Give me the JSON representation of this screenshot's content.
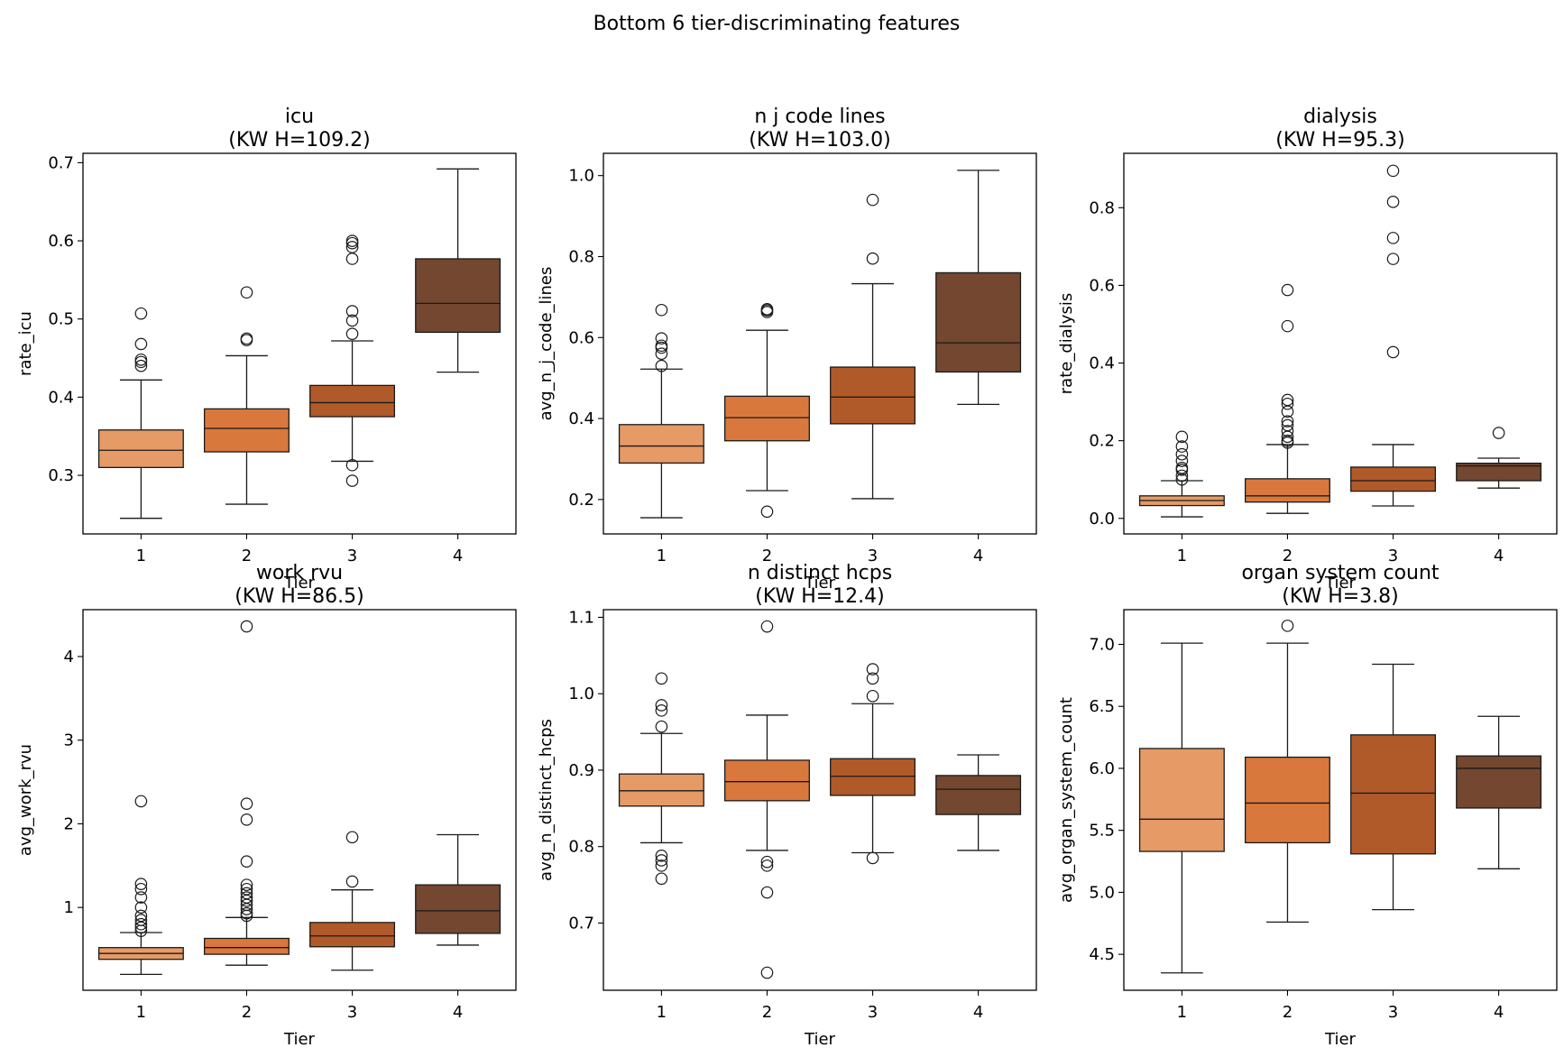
{
  "figure": {
    "suptitle": "Bottom 6 tier-discriminating features",
    "palette": [
      "#e69a66",
      "#d9783c",
      "#b05a2a",
      "#734730"
    ]
  },
  "chart_data": [
    {
      "type": "box",
      "title_line1": "icu",
      "title_line2": "(KW H=109.2)",
      "xlabel": "Tier",
      "ylabel": "rate_icu",
      "categories": [
        "1",
        "2",
        "3",
        "4"
      ],
      "ylim": [
        0.225,
        0.712
      ],
      "yticks": [
        0.3,
        0.4,
        0.5,
        0.6,
        0.7
      ],
      "ytick_labels": [
        "0.3",
        "0.4",
        "0.5",
        "0.6",
        "0.7"
      ],
      "boxes": [
        {
          "whislo": 0.245,
          "q1": 0.31,
          "med": 0.332,
          "q3": 0.358,
          "whishi": 0.422,
          "fliers": [
            0.44,
            0.445,
            0.448,
            0.468,
            0.507
          ]
        },
        {
          "whislo": 0.263,
          "q1": 0.33,
          "med": 0.36,
          "q3": 0.385,
          "whishi": 0.453,
          "fliers": [
            0.473,
            0.475,
            0.534
          ]
        },
        {
          "whislo": 0.318,
          "q1": 0.375,
          "med": 0.393,
          "q3": 0.415,
          "whishi": 0.472,
          "fliers": [
            0.293,
            0.313,
            0.481,
            0.498,
            0.51,
            0.577,
            0.592,
            0.597,
            0.6
          ]
        },
        {
          "whislo": 0.432,
          "q1": 0.483,
          "med": 0.52,
          "q3": 0.577,
          "whishi": 0.692,
          "fliers": []
        }
      ]
    },
    {
      "type": "box",
      "title_line1": "n j code lines",
      "title_line2": "(KW H=103.0)",
      "xlabel": "Tier",
      "ylabel": "avg_n_j_code_lines",
      "categories": [
        "1",
        "2",
        "3",
        "4"
      ],
      "ylim": [
        0.115,
        1.055
      ],
      "yticks": [
        0.2,
        0.4,
        0.6,
        0.8,
        1.0
      ],
      "ytick_labels": [
        "0.2",
        "0.4",
        "0.6",
        "0.8",
        "1.0"
      ],
      "boxes": [
        {
          "whislo": 0.155,
          "q1": 0.29,
          "med": 0.332,
          "q3": 0.385,
          "whishi": 0.522,
          "fliers": [
            0.53,
            0.56,
            0.575,
            0.58,
            0.598,
            0.668
          ]
        },
        {
          "whislo": 0.222,
          "q1": 0.345,
          "med": 0.402,
          "q3": 0.455,
          "whishi": 0.618,
          "fliers": [
            0.17,
            0.663,
            0.667,
            0.67
          ]
        },
        {
          "whislo": 0.202,
          "q1": 0.387,
          "med": 0.453,
          "q3": 0.527,
          "whishi": 0.733,
          "fliers": [
            0.795,
            0.94
          ]
        },
        {
          "whislo": 0.435,
          "q1": 0.515,
          "med": 0.587,
          "q3": 0.76,
          "whishi": 1.013,
          "fliers": []
        }
      ]
    },
    {
      "type": "box",
      "title_line1": "dialysis",
      "title_line2": "(KW H=95.3)",
      "xlabel": "Tier",
      "ylabel": "rate_dialysis",
      "categories": [
        "1",
        "2",
        "3",
        "4"
      ],
      "ylim": [
        -0.04,
        0.94
      ],
      "yticks": [
        0.0,
        0.2,
        0.4,
        0.6,
        0.8
      ],
      "ytick_labels": [
        "0.0",
        "0.2",
        "0.4",
        "0.6",
        "0.8"
      ],
      "boxes": [
        {
          "whislo": 0.004,
          "q1": 0.033,
          "med": 0.046,
          "q3": 0.058,
          "whishi": 0.097,
          "fliers": [
            0.1,
            0.11,
            0.125,
            0.13,
            0.148,
            0.165,
            0.185,
            0.21
          ]
        },
        {
          "whislo": 0.013,
          "q1": 0.042,
          "med": 0.058,
          "q3": 0.102,
          "whishi": 0.19,
          "fliers": [
            0.195,
            0.2,
            0.21,
            0.225,
            0.24,
            0.25,
            0.275,
            0.295,
            0.305,
            0.495,
            0.588
          ]
        },
        {
          "whislo": 0.032,
          "q1": 0.07,
          "med": 0.097,
          "q3": 0.132,
          "whishi": 0.19,
          "fliers": [
            0.428,
            0.668,
            0.722,
            0.815,
            0.895
          ]
        },
        {
          "whislo": 0.078,
          "q1": 0.097,
          "med": 0.135,
          "q3": 0.142,
          "whishi": 0.155,
          "fliers": [
            0.22
          ]
        }
      ]
    },
    {
      "type": "box",
      "title_line1": "work rvu",
      "title_line2": "(KW H=86.5)",
      "xlabel": "Tier",
      "ylabel": "avg_work_rvu",
      "categories": [
        "1",
        "2",
        "3",
        "4"
      ],
      "ylim": [
        0.01,
        4.56
      ],
      "yticks": [
        1,
        2,
        3,
        4
      ],
      "ytick_labels": [
        "1",
        "2",
        "3",
        "4"
      ],
      "boxes": [
        {
          "whislo": 0.2,
          "q1": 0.38,
          "med": 0.45,
          "q3": 0.52,
          "whishi": 0.7,
          "fliers": [
            0.72,
            0.76,
            0.8,
            0.85,
            0.9,
            1.0,
            1.12,
            1.22,
            1.28,
            2.27
          ]
        },
        {
          "whislo": 0.31,
          "q1": 0.44,
          "med": 0.52,
          "q3": 0.63,
          "whishi": 0.88,
          "fliers": [
            0.9,
            0.93,
            0.98,
            1.03,
            1.08,
            1.12,
            1.17,
            1.22,
            1.27,
            1.55,
            2.05,
            2.24,
            4.36
          ]
        },
        {
          "whislo": 0.25,
          "q1": 0.53,
          "med": 0.66,
          "q3": 0.82,
          "whishi": 1.21,
          "fliers": [
            1.31,
            1.84
          ]
        },
        {
          "whislo": 0.55,
          "q1": 0.69,
          "med": 0.96,
          "q3": 1.27,
          "whishi": 1.87,
          "fliers": []
        }
      ]
    },
    {
      "type": "box",
      "title_line1": "n distinct hcps",
      "title_line2": "(KW H=12.4)",
      "xlabel": "Tier",
      "ylabel": "avg_n_distinct_hcps",
      "categories": [
        "1",
        "2",
        "3",
        "4"
      ],
      "ylim": [
        0.612,
        1.11
      ],
      "yticks": [
        0.7,
        0.8,
        0.9,
        1.0,
        1.1
      ],
      "ytick_labels": [
        "0.7",
        "0.8",
        "0.9",
        "1.0",
        "1.1"
      ],
      "boxes": [
        {
          "whislo": 0.805,
          "q1": 0.853,
          "med": 0.873,
          "q3": 0.895,
          "whishi": 0.948,
          "fliers": [
            0.758,
            0.775,
            0.782,
            0.788,
            0.957,
            0.978,
            0.985,
            1.02
          ]
        },
        {
          "whislo": 0.795,
          "q1": 0.86,
          "med": 0.885,
          "q3": 0.913,
          "whishi": 0.972,
          "fliers": [
            0.635,
            0.74,
            0.775,
            0.78,
            1.088
          ]
        },
        {
          "whislo": 0.792,
          "q1": 0.867,
          "med": 0.892,
          "q3": 0.915,
          "whishi": 0.987,
          "fliers": [
            0.785,
            0.997,
            1.02,
            1.032
          ]
        },
        {
          "whislo": 0.795,
          "q1": 0.842,
          "med": 0.875,
          "q3": 0.893,
          "whishi": 0.92,
          "fliers": []
        }
      ]
    },
    {
      "type": "box",
      "title_line1": "organ system count",
      "title_line2": "(KW H=3.8)",
      "xlabel": "Tier",
      "ylabel": "avg_organ_system_count",
      "categories": [
        "1",
        "2",
        "3",
        "4"
      ],
      "ylim": [
        4.21,
        7.28
      ],
      "yticks": [
        4.5,
        5.0,
        5.5,
        6.0,
        6.5,
        7.0
      ],
      "ytick_labels": [
        "4.5",
        "5.0",
        "5.5",
        "6.0",
        "6.5",
        "7.0"
      ],
      "boxes": [
        {
          "whislo": 4.35,
          "q1": 5.33,
          "med": 5.59,
          "q3": 6.16,
          "whishi": 7.01,
          "fliers": []
        },
        {
          "whislo": 4.76,
          "q1": 5.4,
          "med": 5.72,
          "q3": 6.09,
          "whishi": 7.01,
          "fliers": [
            7.15
          ]
        },
        {
          "whislo": 4.86,
          "q1": 5.31,
          "med": 5.8,
          "q3": 6.27,
          "whishi": 6.84,
          "fliers": []
        },
        {
          "whislo": 5.19,
          "q1": 5.68,
          "med": 6.0,
          "q3": 6.1,
          "whishi": 6.42,
          "fliers": []
        }
      ]
    }
  ]
}
